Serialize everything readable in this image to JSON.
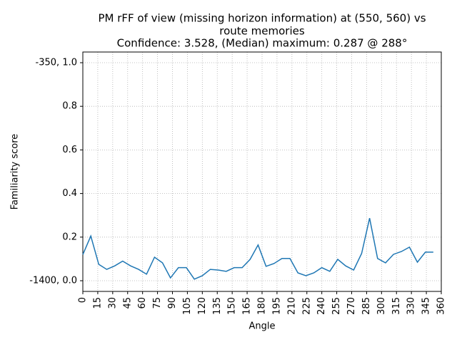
{
  "chart_data": {
    "type": "line",
    "title": [
      "PM rFF of view (missing horizon information) at (550, 560) vs",
      "route memories",
      "Confidence: 3.528, (Median) maximum: 0.287 @ 288°"
    ],
    "xlabel": "Angle",
    "ylabel": "Familiarity score",
    "x": [
      0,
      8,
      16,
      24,
      32,
      40,
      48,
      56,
      64,
      72,
      80,
      88,
      96,
      104,
      112,
      120,
      128,
      136,
      144,
      152,
      160,
      168,
      176,
      184,
      192,
      200,
      208,
      216,
      224,
      232,
      240,
      248,
      256,
      264,
      272,
      280,
      288,
      296,
      304,
      312,
      320,
      328,
      336,
      344,
      352
    ],
    "series": [
      {
        "name": "Familiarity",
        "color": "#1f77b4",
        "values": [
          0.12,
          0.205,
          0.075,
          0.052,
          0.068,
          0.09,
          0.068,
          0.052,
          0.03,
          0.108,
          0.082,
          0.013,
          0.06,
          0.06,
          0.007,
          0.023,
          0.052,
          0.049,
          0.043,
          0.06,
          0.06,
          0.098,
          0.164,
          0.066,
          0.079,
          0.102,
          0.102,
          0.036,
          0.023,
          0.036,
          0.06,
          0.043,
          0.098,
          0.068,
          0.049,
          0.125,
          0.287,
          0.102,
          0.082,
          0.121,
          0.134,
          0.154,
          0.085,
          0.131,
          0.131
        ]
      }
    ],
    "xlim": [
      0,
      360
    ],
    "xticks": [
      0,
      15,
      30,
      45,
      60,
      75,
      90,
      105,
      120,
      135,
      150,
      165,
      180,
      195,
      210,
      225,
      240,
      255,
      270,
      285,
      300,
      315,
      330,
      345,
      360
    ],
    "ylim": [
      -0.049,
      1.049
    ],
    "yticks": [
      {
        "value": 0.0,
        "label": "-1400, 0.0"
      },
      0.2,
      0.4,
      0.6,
      0.8,
      {
        "value": 1.0,
        "label": "-350, 1.0"
      }
    ],
    "grid": true
  }
}
